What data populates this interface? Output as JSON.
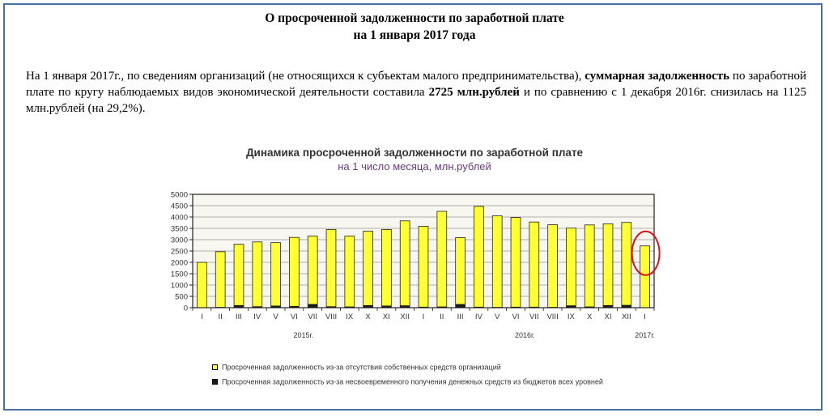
{
  "document": {
    "title_line1": "О просроченной задолженности по заработной плате",
    "title_line2": "на 1 января 2017 года",
    "paragraph": {
      "p1": "На 1 января 2017г., по сведениям организаций (не относящихся к субъектам малого предпринимательства), ",
      "b1": "суммарная задолженность",
      "p2": " по заработной плате по кругу наблюдаемых видов экономической деятельности составила ",
      "b2": "2725 млн.рублей",
      "p3": " и по сравнению с 1 декабря 2016г. снизилась на 1125 млн.рублей (на 29,2%)."
    }
  },
  "chart_data": {
    "type": "bar",
    "title": "Динамика просроченной задолженности по заработной плате",
    "subtitle": "на 1 число месяца, млн.рублей",
    "ylim": [
      0,
      5000
    ],
    "yticks": [
      0,
      500,
      1000,
      1500,
      2000,
      2500,
      3000,
      3500,
      4000,
      4500,
      5000
    ],
    "grid": true,
    "categories": [
      "I",
      "II",
      "III",
      "IV",
      "V",
      "VI",
      "VII",
      "VIII",
      "IX",
      "X",
      "XI",
      "XII",
      "I",
      "II",
      "III",
      "IV",
      "V",
      "VI",
      "VII",
      "VIII",
      "IX",
      "X",
      "XI",
      "XII",
      "I"
    ],
    "year_labels": [
      {
        "label": "2015г.",
        "center_index": 5.5
      },
      {
        "label": "2016г.",
        "center_index": 17.5
      },
      {
        "label": "2017г.",
        "center_index": 24
      }
    ],
    "series": [
      {
        "name": "Просроченная задолженность из-за отсутствия собственных средств организаций",
        "color": "#ffff33",
        "values": [
          2000,
          2470,
          2800,
          2900,
          2870,
          3100,
          3160,
          3450,
          3160,
          3380,
          3450,
          3830,
          3590,
          4250,
          3090,
          4470,
          4050,
          3980,
          3780,
          3660,
          3510,
          3650,
          3700,
          3760,
          2725
        ]
      },
      {
        "name": "Просроченная задолженность из-за несвоевременного получения денежных средств из бюджетов всех уровней",
        "color": "#1a1a1a",
        "values": [
          20,
          30,
          110,
          60,
          90,
          70,
          160,
          60,
          50,
          110,
          90,
          100,
          40,
          50,
          160,
          40,
          30,
          40,
          40,
          30,
          100,
          50,
          110,
          120,
          20
        ]
      }
    ],
    "highlight_index": 24,
    "highlight_color": "#dd1111",
    "bar_fill": "#ffff33",
    "plot_bg": "#f7f7f0",
    "frame_color": "#222222"
  }
}
